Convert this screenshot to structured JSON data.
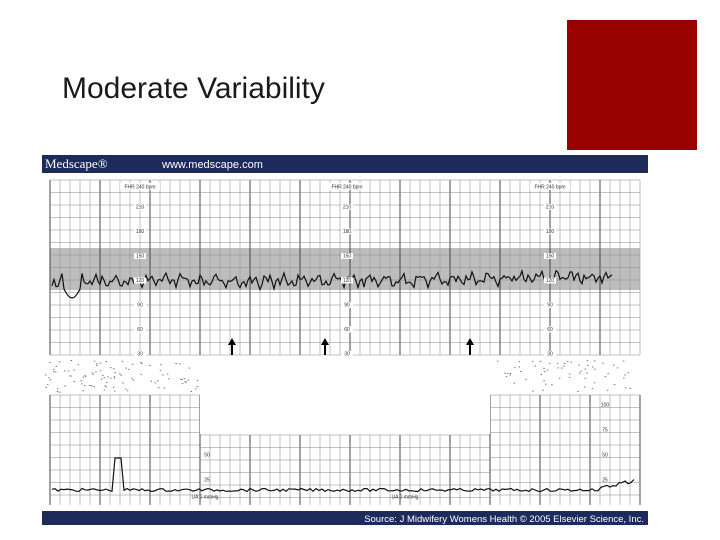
{
  "title": "Moderate Variability",
  "figure": {
    "brand": "Medscape®",
    "url": "www.medscape.com",
    "source": "Source: J Midwifery Womens Health © 2005 Elsevier Science, Inc.",
    "fhr_header": "FHR 240 bpm",
    "fhr_scale": [
      "210",
      "180",
      "150",
      "120",
      "90",
      "60",
      "30"
    ],
    "ua_header": "UA 0 mmHg",
    "ua_scale": [
      "100",
      "75",
      "50",
      "25"
    ]
  }
}
